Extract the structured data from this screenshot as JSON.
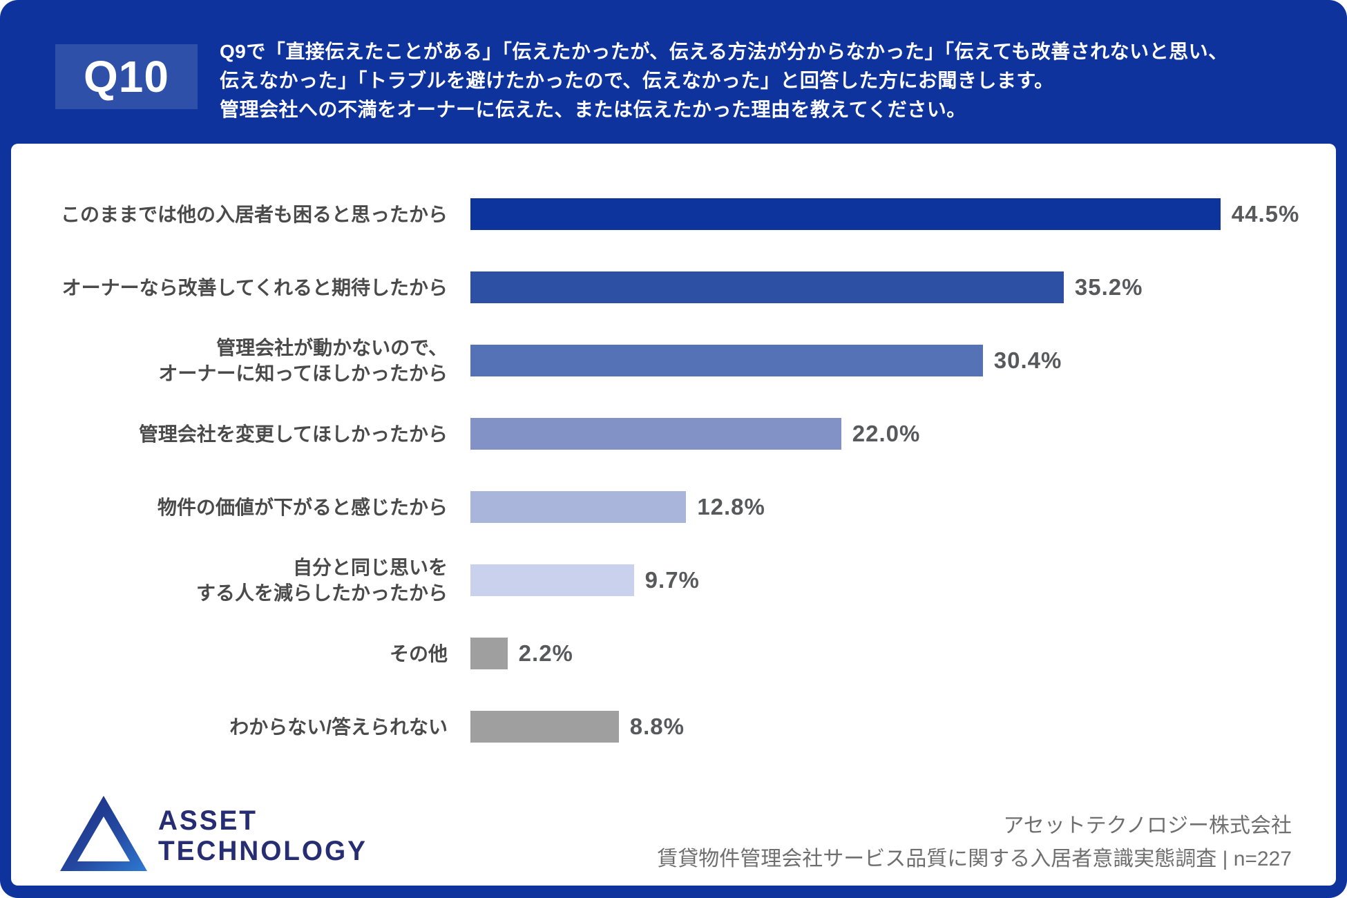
{
  "header": {
    "badge": "Q10",
    "question": "Q9で「直接伝えたことがある」「伝えたかったが、伝える方法が分からなかった」「伝えても改善されないと思い、\n伝えなかった」「トラブルを避けたかったので、伝えなかった」と回答した方にお聞きします。\n管理会社への不満をオーナーに伝えた、または伝えたかった理由を教えてください。"
  },
  "chart_data": {
    "type": "bar",
    "orientation": "horizontal",
    "title": "管理会社への不満をオーナーに伝えた、または伝えたかった理由を教えてください。",
    "categories": [
      "このままでは他の入居者も困ると思ったから",
      "オーナーなら改善してくれると期待したから",
      "管理会社が動かないので、\nオーナーに知ってほしかったから",
      "管理会社を変更してほしかったから",
      "物件の価値が下がると感じたから",
      "自分と同じ思いを\nする人を減らしたかったから",
      "その他",
      "わからない/答えられない"
    ],
    "values": [
      44.5,
      35.2,
      30.4,
      22.0,
      12.8,
      9.7,
      2.2,
      8.8
    ],
    "value_labels": [
      "44.5%",
      "35.2%",
      "30.4%",
      "22.0%",
      "12.8%",
      "9.7%",
      "2.2%",
      "8.8%"
    ],
    "colors": [
      "#0d339c",
      "#2d4fa4",
      "#5672b6",
      "#8292c7",
      "#aab5dc",
      "#c9d1ec",
      "#9f9f9f",
      "#9f9f9f"
    ],
    "xlabel": "",
    "ylabel": "",
    "xlim": [
      0,
      50
    ],
    "grid": false,
    "legend": "none"
  },
  "footer": {
    "logo_icon": "asset-technology-triangle-logo",
    "logo_text_line1": "ASSET",
    "logo_text_line2": "TECHNOLOGY",
    "source_line1": "アセットテクノロジー株式会社",
    "source_line2": "賃貸物件管理会社サービス品質に関する入居者意識実態調査 | n=227"
  },
  "colors": {
    "background": "#0f339d",
    "badge_background": "#2f50a8",
    "panel_background": "#ffffff",
    "label_text": "#4a4a4b",
    "value_text": "#58595b",
    "source_text": "#6f6f6f",
    "logo_navy": "#262d72",
    "logo_blue": "#2f7ad2"
  }
}
